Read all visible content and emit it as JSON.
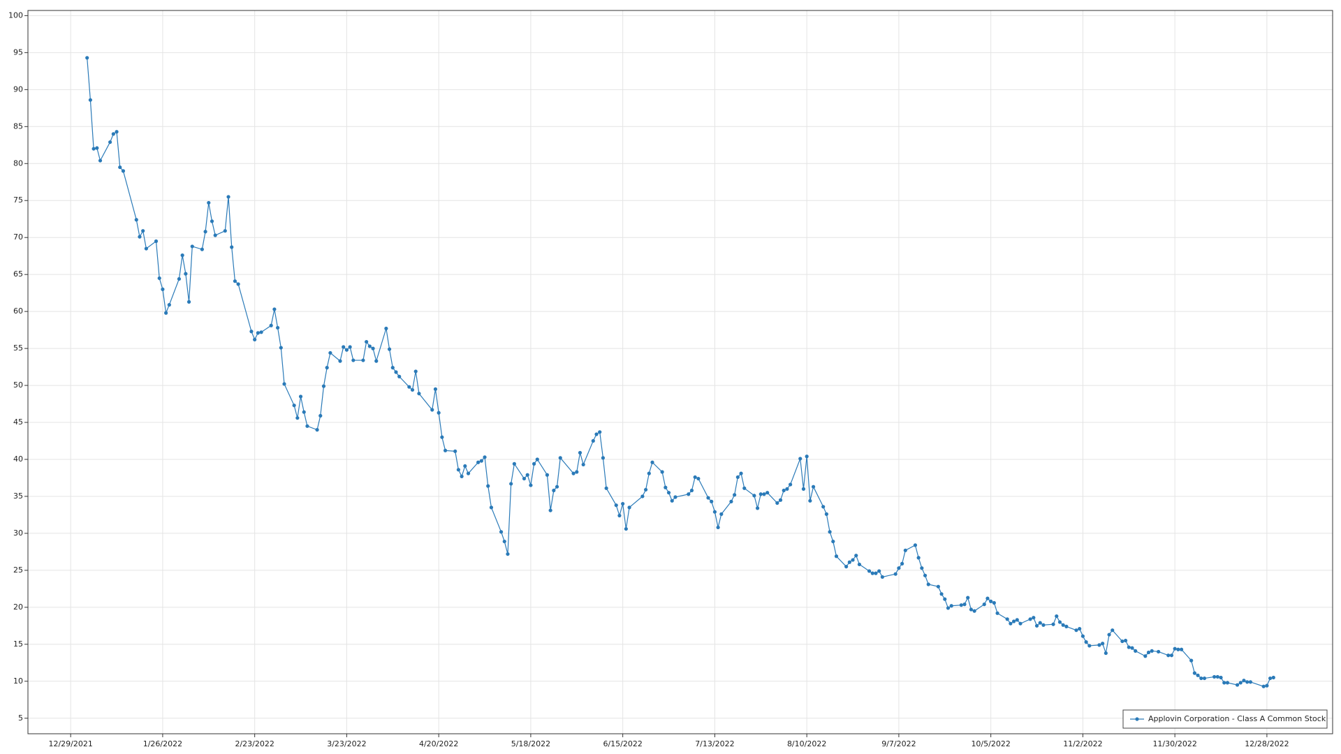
{
  "chart_data": {
    "type": "line",
    "xlim": [
      "2021-12-16",
      "2023-01-17"
    ],
    "ylim": [
      2.9,
      100.7
    ],
    "xticks": [
      {
        "value": "2021-12-29",
        "label": "12/29/2021"
      },
      {
        "value": "2022-01-26",
        "label": "1/26/2022"
      },
      {
        "value": "2022-02-23",
        "label": "2/23/2022"
      },
      {
        "value": "2022-03-23",
        "label": "3/23/2022"
      },
      {
        "value": "2022-04-20",
        "label": "4/20/2022"
      },
      {
        "value": "2022-05-18",
        "label": "5/18/2022"
      },
      {
        "value": "2022-06-15",
        "label": "6/15/2022"
      },
      {
        "value": "2022-07-13",
        "label": "7/13/2022"
      },
      {
        "value": "2022-08-10",
        "label": "8/10/2022"
      },
      {
        "value": "2022-09-07",
        "label": "9/7/2022"
      },
      {
        "value": "2022-10-05",
        "label": "10/5/2022"
      },
      {
        "value": "2022-11-02",
        "label": "11/2/2022"
      },
      {
        "value": "2022-11-30",
        "label": "11/30/2022"
      },
      {
        "value": "2022-12-28",
        "label": "12/28/2022"
      }
    ],
    "yticks": [
      5,
      10,
      15,
      20,
      25,
      30,
      35,
      40,
      45,
      50,
      55,
      60,
      65,
      70,
      75,
      80,
      85,
      90,
      95,
      100
    ],
    "grid": true,
    "legend_position": "bottom-right",
    "x": [
      "2022-01-03",
      "2022-01-04",
      "2022-01-05",
      "2022-01-06",
      "2022-01-07",
      "2022-01-10",
      "2022-01-11",
      "2022-01-12",
      "2022-01-13",
      "2022-01-14",
      "2022-01-18",
      "2022-01-19",
      "2022-01-20",
      "2022-01-21",
      "2022-01-24",
      "2022-01-25",
      "2022-01-26",
      "2022-01-27",
      "2022-01-28",
      "2022-01-31",
      "2022-02-01",
      "2022-02-02",
      "2022-02-03",
      "2022-02-04",
      "2022-02-07",
      "2022-02-08",
      "2022-02-09",
      "2022-02-10",
      "2022-02-11",
      "2022-02-14",
      "2022-02-15",
      "2022-02-16",
      "2022-02-17",
      "2022-02-18",
      "2022-02-22",
      "2022-02-23",
      "2022-02-24",
      "2022-02-25",
      "2022-02-28",
      "2022-03-01",
      "2022-03-02",
      "2022-03-03",
      "2022-03-04",
      "2022-03-07",
      "2022-03-08",
      "2022-03-09",
      "2022-03-10",
      "2022-03-11",
      "2022-03-14",
      "2022-03-15",
      "2022-03-16",
      "2022-03-17",
      "2022-03-18",
      "2022-03-21",
      "2022-03-22",
      "2022-03-23",
      "2022-03-24",
      "2022-03-25",
      "2022-03-28",
      "2022-03-29",
      "2022-03-30",
      "2022-03-31",
      "2022-04-01",
      "2022-04-04",
      "2022-04-05",
      "2022-04-06",
      "2022-04-07",
      "2022-04-08",
      "2022-04-11",
      "2022-04-12",
      "2022-04-13",
      "2022-04-14",
      "2022-04-18",
      "2022-04-19",
      "2022-04-20",
      "2022-04-21",
      "2022-04-22",
      "2022-04-25",
      "2022-04-26",
      "2022-04-27",
      "2022-04-28",
      "2022-04-29",
      "2022-05-02",
      "2022-05-03",
      "2022-05-04",
      "2022-05-05",
      "2022-05-06",
      "2022-05-09",
      "2022-05-10",
      "2022-05-11",
      "2022-05-12",
      "2022-05-13",
      "2022-05-16",
      "2022-05-17",
      "2022-05-18",
      "2022-05-19",
      "2022-05-20",
      "2022-05-23",
      "2022-05-24",
      "2022-05-25",
      "2022-05-26",
      "2022-05-27",
      "2022-05-31",
      "2022-06-01",
      "2022-06-02",
      "2022-06-03",
      "2022-06-06",
      "2022-06-07",
      "2022-06-08",
      "2022-06-09",
      "2022-06-10",
      "2022-06-13",
      "2022-06-14",
      "2022-06-15",
      "2022-06-16",
      "2022-06-17",
      "2022-06-21",
      "2022-06-22",
      "2022-06-23",
      "2022-06-24",
      "2022-06-27",
      "2022-06-28",
      "2022-06-29",
      "2022-06-30",
      "2022-07-01",
      "2022-07-05",
      "2022-07-06",
      "2022-07-07",
      "2022-07-08",
      "2022-07-11",
      "2022-07-12",
      "2022-07-13",
      "2022-07-14",
      "2022-07-15",
      "2022-07-18",
      "2022-07-19",
      "2022-07-20",
      "2022-07-21",
      "2022-07-22",
      "2022-07-25",
      "2022-07-26",
      "2022-07-27",
      "2022-07-28",
      "2022-07-29",
      "2022-08-01",
      "2022-08-02",
      "2022-08-03",
      "2022-08-04",
      "2022-08-05",
      "2022-08-08",
      "2022-08-09",
      "2022-08-10",
      "2022-08-11",
      "2022-08-12",
      "2022-08-15",
      "2022-08-16",
      "2022-08-17",
      "2022-08-18",
      "2022-08-19",
      "2022-08-22",
      "2022-08-23",
      "2022-08-24",
      "2022-08-25",
      "2022-08-26",
      "2022-08-29",
      "2022-08-30",
      "2022-08-31",
      "2022-09-01",
      "2022-09-02",
      "2022-09-06",
      "2022-09-07",
      "2022-09-08",
      "2022-09-09",
      "2022-09-12",
      "2022-09-13",
      "2022-09-14",
      "2022-09-15",
      "2022-09-16",
      "2022-09-19",
      "2022-09-20",
      "2022-09-21",
      "2022-09-22",
      "2022-09-23",
      "2022-09-26",
      "2022-09-27",
      "2022-09-28",
      "2022-09-29",
      "2022-09-30",
      "2022-10-03",
      "2022-10-04",
      "2022-10-05",
      "2022-10-06",
      "2022-10-07",
      "2022-10-10",
      "2022-10-11",
      "2022-10-12",
      "2022-10-13",
      "2022-10-14",
      "2022-10-17",
      "2022-10-18",
      "2022-10-19",
      "2022-10-20",
      "2022-10-21",
      "2022-10-24",
      "2022-10-25",
      "2022-10-26",
      "2022-10-27",
      "2022-10-28",
      "2022-10-31",
      "2022-11-01",
      "2022-11-02",
      "2022-11-03",
      "2022-11-04",
      "2022-11-07",
      "2022-11-08",
      "2022-11-09",
      "2022-11-10",
      "2022-11-11",
      "2022-11-14",
      "2022-11-15",
      "2022-11-16",
      "2022-11-17",
      "2022-11-18",
      "2022-11-21",
      "2022-11-22",
      "2022-11-23",
      "2022-11-25",
      "2022-11-28",
      "2022-11-29",
      "2022-11-30",
      "2022-12-01",
      "2022-12-02",
      "2022-12-05",
      "2022-12-06",
      "2022-12-07",
      "2022-12-08",
      "2022-12-09",
      "2022-12-12",
      "2022-12-13",
      "2022-12-14",
      "2022-12-15",
      "2022-12-16",
      "2022-12-19",
      "2022-12-20",
      "2022-12-21",
      "2022-12-22",
      "2022-12-23",
      "2022-12-27",
      "2022-12-28",
      "2022-12-29",
      "2022-12-30"
    ],
    "series": [
      {
        "name": "Applovin Corporation - Class A Common Stock",
        "color": "#2a7ab8",
        "values": [
          94.3,
          88.6,
          82.0,
          82.1,
          80.4,
          82.9,
          84.0,
          84.3,
          79.5,
          79.0,
          72.4,
          70.1,
          70.9,
          68.5,
          69.5,
          64.5,
          63.0,
          59.8,
          60.9,
          64.4,
          67.6,
          65.1,
          61.3,
          68.8,
          68.4,
          70.8,
          74.7,
          72.2,
          70.3,
          70.9,
          75.5,
          68.7,
          64.1,
          63.7,
          57.3,
          56.2,
          57.1,
          57.2,
          58.1,
          60.3,
          57.8,
          55.1,
          50.2,
          47.3,
          45.6,
          48.5,
          46.4,
          44.5,
          44.0,
          45.9,
          49.9,
          52.4,
          54.4,
          53.3,
          55.2,
          54.8,
          55.2,
          53.4,
          53.4,
          55.9,
          55.3,
          55.0,
          53.3,
          57.7,
          54.9,
          52.4,
          51.8,
          51.2,
          49.8,
          49.4,
          51.9,
          48.9,
          46.7,
          49.5,
          46.3,
          43.0,
          41.2,
          41.1,
          38.6,
          37.7,
          39.1,
          38.1,
          39.6,
          39.8,
          40.3,
          36.4,
          33.5,
          30.2,
          28.9,
          27.2,
          36.7,
          39.4,
          37.4,
          37.9,
          36.5,
          39.4,
          40.0,
          37.9,
          33.1,
          35.8,
          36.3,
          40.2,
          38.1,
          38.3,
          40.9,
          39.3,
          42.5,
          43.4,
          43.7,
          40.2,
          36.1,
          33.8,
          32.4,
          34.0,
          30.6,
          33.5,
          35.0,
          35.9,
          38.1,
          39.6,
          38.3,
          36.2,
          35.5,
          34.4,
          34.9,
          35.3,
          35.8,
          37.6,
          37.4,
          34.8,
          34.3,
          32.9,
          30.8,
          32.6,
          34.3,
          35.2,
          37.6,
          38.1,
          36.1,
          35.1,
          33.4,
          35.3,
          35.3,
          35.5,
          34.1,
          34.5,
          35.8,
          36.0,
          36.6,
          40.1,
          36.0,
          40.4,
          34.4,
          36.3,
          33.6,
          32.6,
          30.2,
          28.9,
          26.9,
          25.5,
          26.1,
          26.4,
          27.0,
          25.8,
          24.9,
          24.6,
          24.6,
          24.9,
          24.1,
          24.5,
          25.3,
          25.9,
          27.7,
          28.4,
          26.7,
          25.3,
          24.3,
          23.1,
          22.8,
          21.8,
          21.1,
          19.9,
          20.2,
          20.3,
          20.4,
          21.3,
          19.7,
          19.5,
          20.4,
          21.2,
          20.8,
          20.6,
          19.2,
          18.4,
          17.8,
          18.1,
          18.3,
          17.8,
          18.4,
          18.6,
          17.5,
          17.9,
          17.6,
          17.7,
          18.8,
          18.0,
          17.6,
          17.4,
          16.9,
          17.1,
          16.1,
          15.3,
          14.8,
          14.9,
          15.1,
          13.8,
          16.3,
          16.9,
          15.4,
          15.5,
          14.6,
          14.5,
          14.1,
          13.4,
          13.9,
          14.1,
          14.0,
          13.5,
          13.5,
          14.4,
          14.3,
          14.3,
          12.8,
          11.1,
          10.8,
          10.4,
          10.4,
          10.6,
          10.6,
          10.5,
          9.8,
          9.8,
          9.5,
          9.8,
          10.1,
          9.9,
          9.9,
          9.3,
          9.4,
          10.4,
          10.5
        ]
      }
    ]
  }
}
